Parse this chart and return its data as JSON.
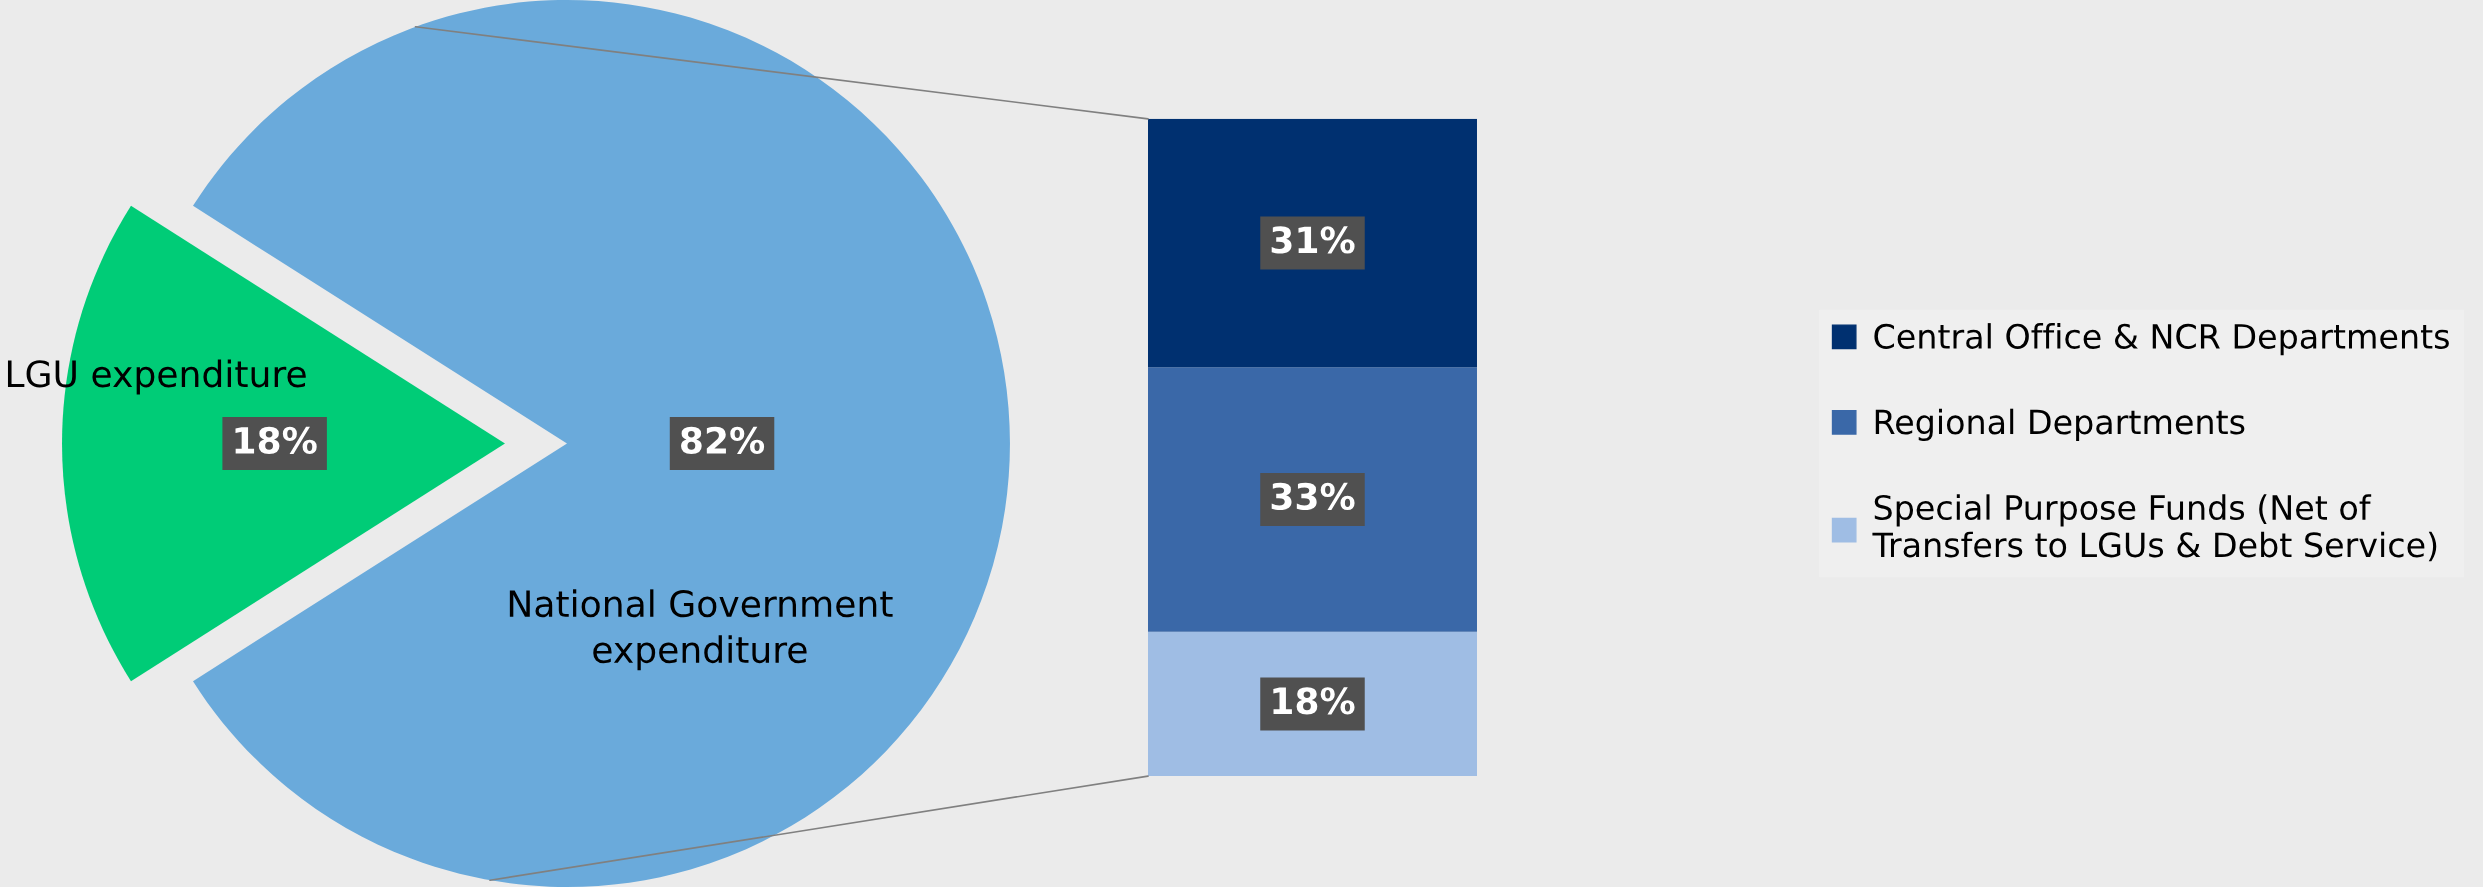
{
  "chart_data": [
    {
      "type": "pie",
      "categories": [
        "LGU expenditure",
        "National Government expenditure"
      ],
      "values": [
        18,
        82
      ],
      "colors": [
        "#00cc77",
        "#6aaadb"
      ],
      "value_labels": [
        "18%",
        "82%"
      ]
    },
    {
      "type": "bar",
      "stacked": true,
      "categories": [
        null
      ],
      "legend": "right",
      "series": [
        {
          "name": "Special Purpose Funds (Net of\nTransfers to LGUs & Debt Service)",
          "color": "#9fbde4",
          "values": [
            18
          ],
          "value_labels": [
            "18%"
          ]
        },
        {
          "name": "Regional Departments",
          "color": "#3a68a8",
          "values": [
            33
          ],
          "value_labels": [
            "33%"
          ]
        },
        {
          "name": "Central Office & NCR Departments",
          "color": "#003070",
          "values": [
            31
          ],
          "value_labels": [
            "31%"
          ]
        }
      ]
    }
  ]
}
